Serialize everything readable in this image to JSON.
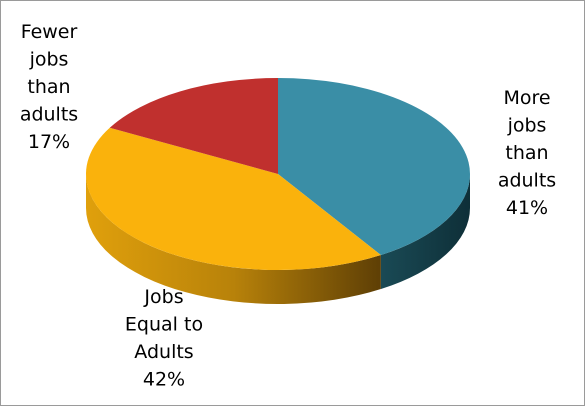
{
  "chart_data": {
    "type": "pie",
    "title": "",
    "legend": "none",
    "slices": [
      {
        "label": [
          "More",
          "jobs",
          "than",
          "adults",
          "41%"
        ],
        "value": 41,
        "color": "#3a8ea6"
      },
      {
        "label": [
          "Jobs",
          "Equal to",
          "Adults",
          "42%"
        ],
        "value": 42,
        "color": "#fab20c"
      },
      {
        "label": [
          "Fewer",
          "jobs",
          "than",
          "adults",
          "17%"
        ],
        "value": 17,
        "color": "#c0302e"
      }
    ]
  }
}
